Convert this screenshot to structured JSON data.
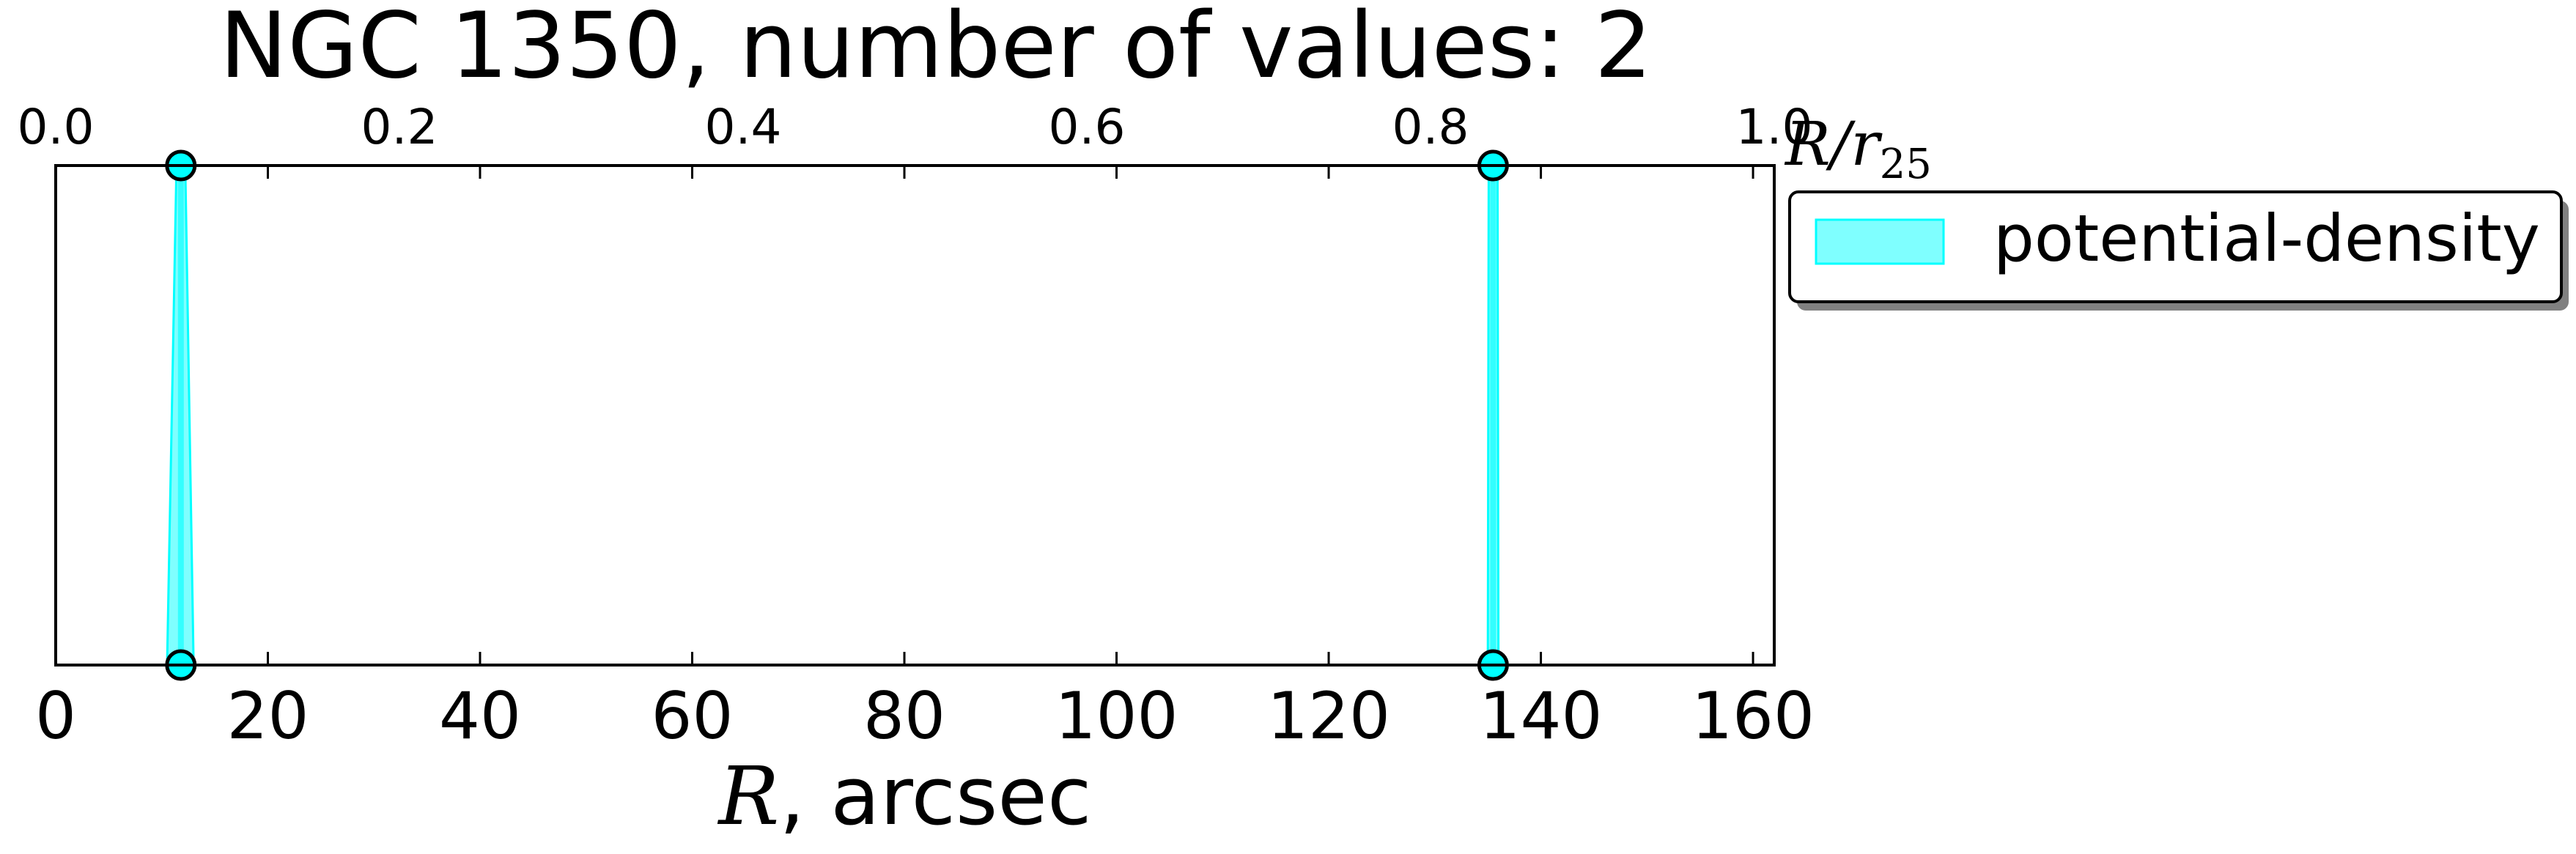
{
  "chart_data": {
    "type": "band",
    "title": "NGC 1350, number of values: 2",
    "xlabel": {
      "symbol": "R",
      "rest": ", arcsec"
    },
    "top_xlabel": {
      "symbol": "R/r",
      "subscript": "25"
    },
    "xlim": [
      0,
      162
    ],
    "top_xlim": [
      0.0,
      1.0
    ],
    "x_ticks": [
      "0",
      "20",
      "40",
      "60",
      "80",
      "100",
      "120",
      "140",
      "160"
    ],
    "top_x_ticks": [
      "0.0",
      "0.2",
      "0.4",
      "0.6",
      "0.8",
      "1.0"
    ],
    "y_ticks_visible": false,
    "grid": false,
    "legend_position": "outside-right-top",
    "series": [
      {
        "name": "potential-density",
        "color": "#00ffff",
        "edge_color": "#000000",
        "bands": [
          {
            "x_center": 11.8,
            "x_min": 10.5,
            "x_max": 13.0
          },
          {
            "x_center": 135.5,
            "x_min": 135.0,
            "x_max": 136.0
          }
        ]
      }
    ]
  }
}
